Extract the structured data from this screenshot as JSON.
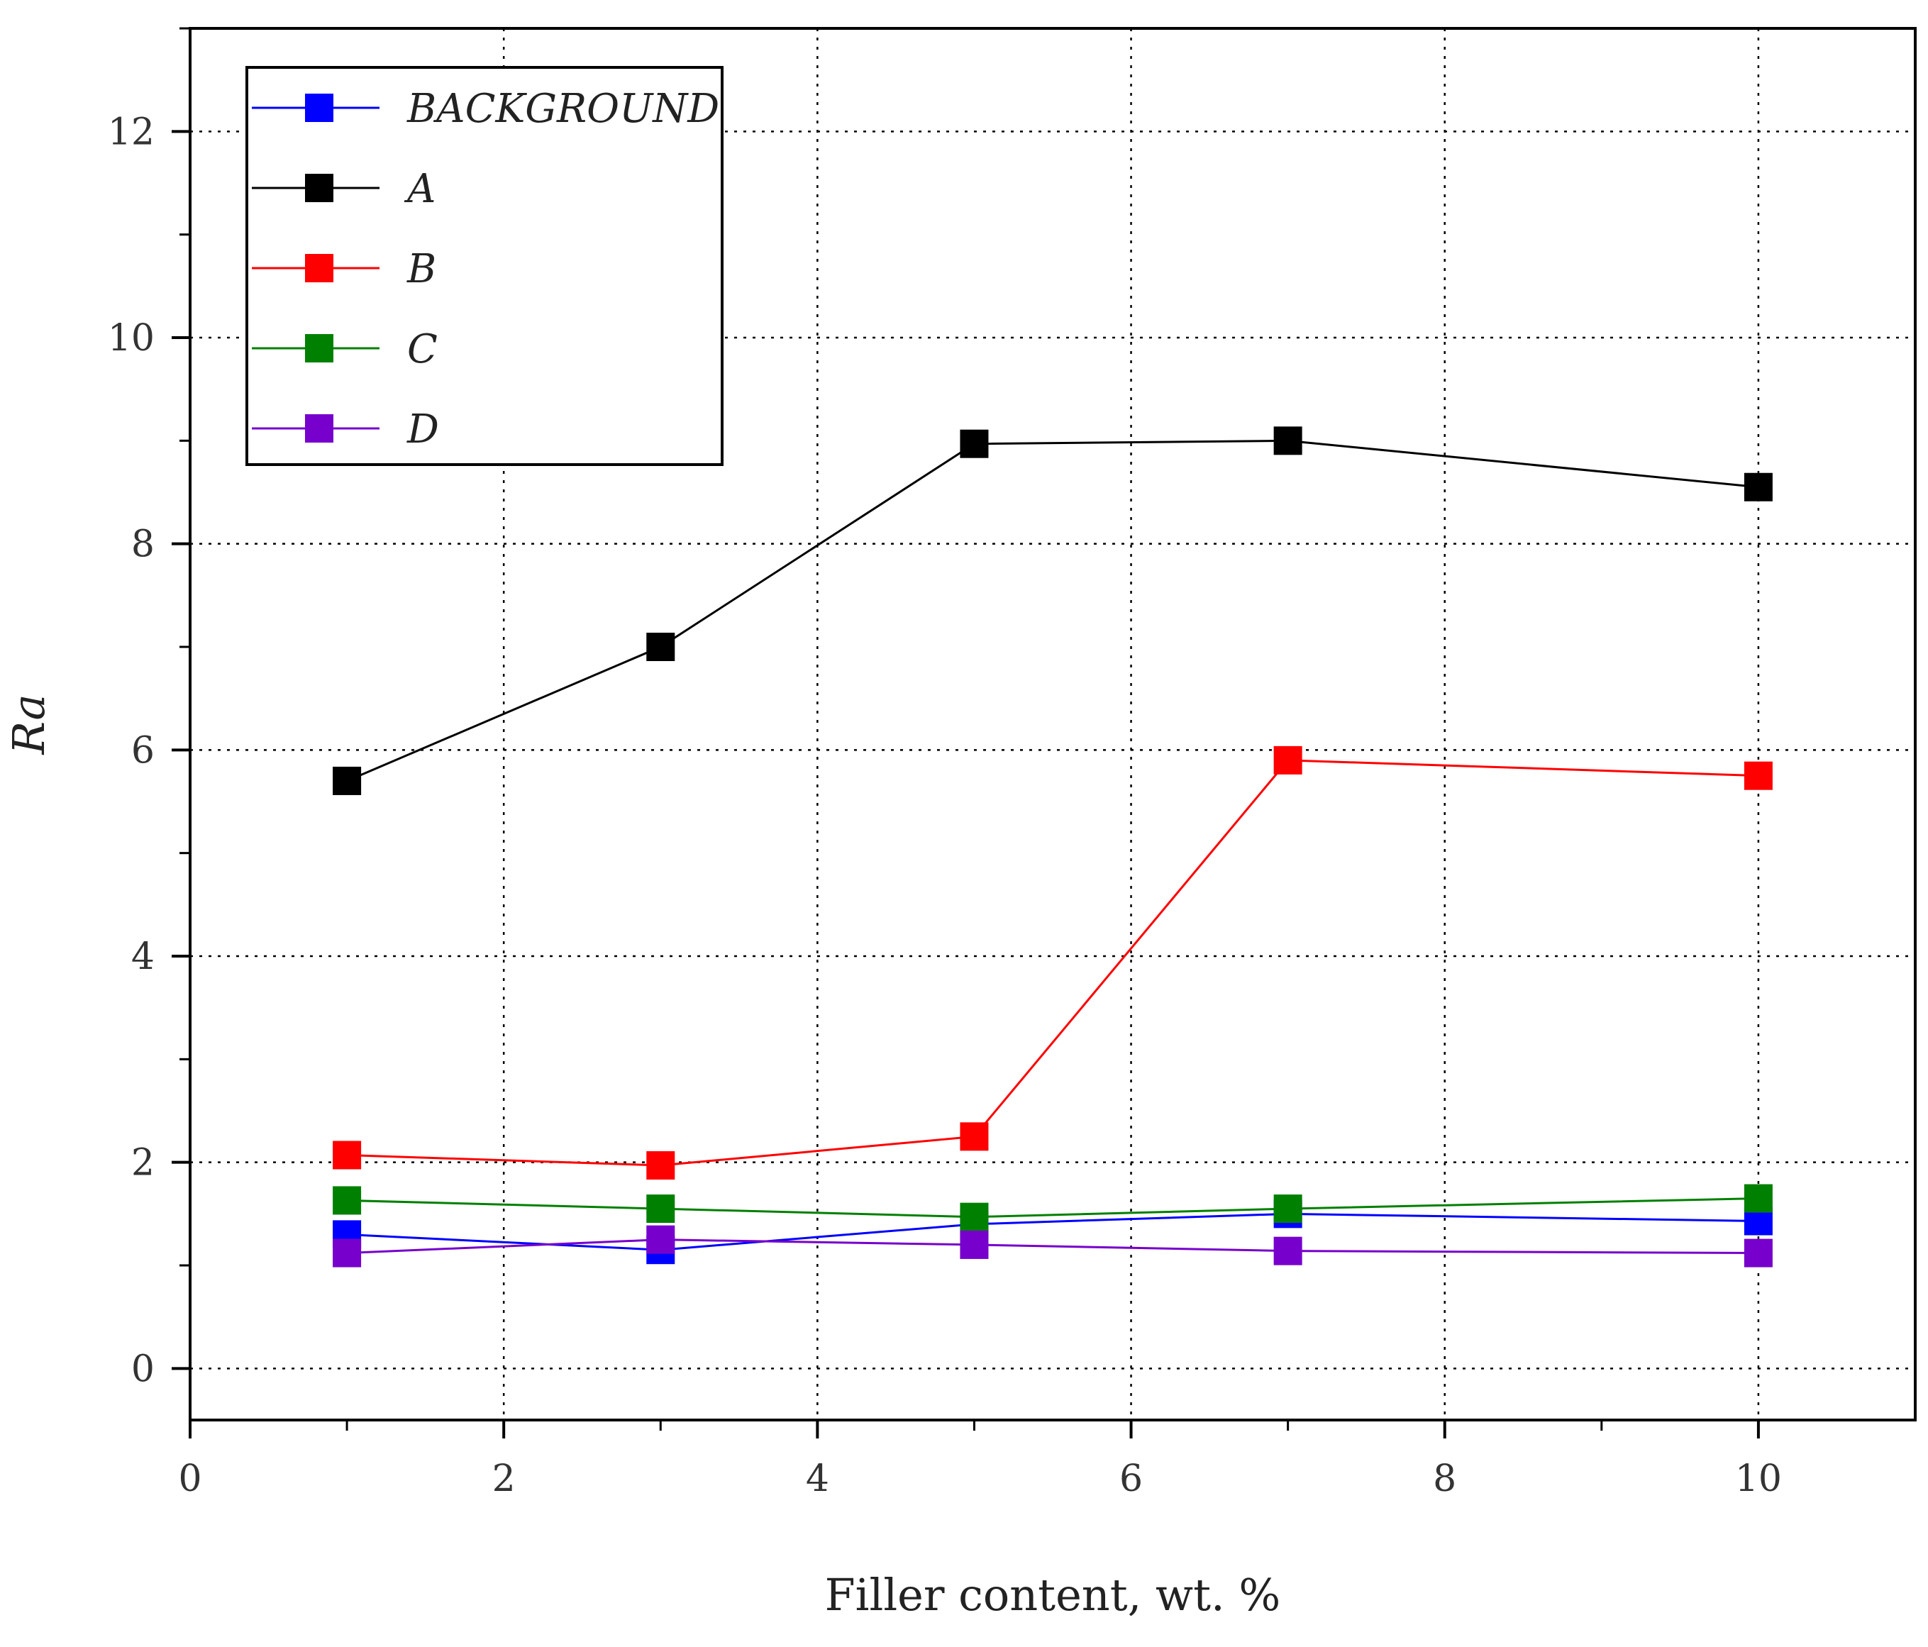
{
  "chart_data": {
    "type": "line",
    "title": "",
    "xlabel": "Filler content, wt. %",
    "ylabel": "Ra",
    "xlim": [
      0,
      11
    ],
    "ylim": [
      -0.5,
      13
    ],
    "xticks": [
      0,
      2,
      4,
      6,
      8,
      10
    ],
    "yticks": [
      0,
      2,
      4,
      6,
      8,
      10,
      12
    ],
    "xtick_labels": [
      "0",
      "2",
      "4",
      "6",
      "8",
      "10"
    ],
    "ytick_labels": [
      "0",
      "2",
      "4",
      "6",
      "8",
      "10",
      "12"
    ],
    "grid": true,
    "legend_position": "top-left",
    "x": [
      1,
      3,
      5,
      7,
      10
    ],
    "series": [
      {
        "name": "BACKGROUND",
        "color": "#0000ff",
        "values": [
          1.3,
          1.15,
          1.4,
          1.5,
          1.43
        ]
      },
      {
        "name": "A",
        "color": "#000000",
        "values": [
          5.7,
          7.0,
          8.97,
          9.0,
          8.55
        ]
      },
      {
        "name": "B",
        "color": "#ff0000",
        "values": [
          2.07,
          1.97,
          2.25,
          5.9,
          5.75
        ]
      },
      {
        "name": "C",
        "color": "#008000",
        "values": [
          1.63,
          1.55,
          1.47,
          1.55,
          1.65
        ]
      },
      {
        "name": "D",
        "color": "#7700cc",
        "values": [
          1.12,
          1.25,
          1.2,
          1.14,
          1.12
        ]
      }
    ]
  }
}
